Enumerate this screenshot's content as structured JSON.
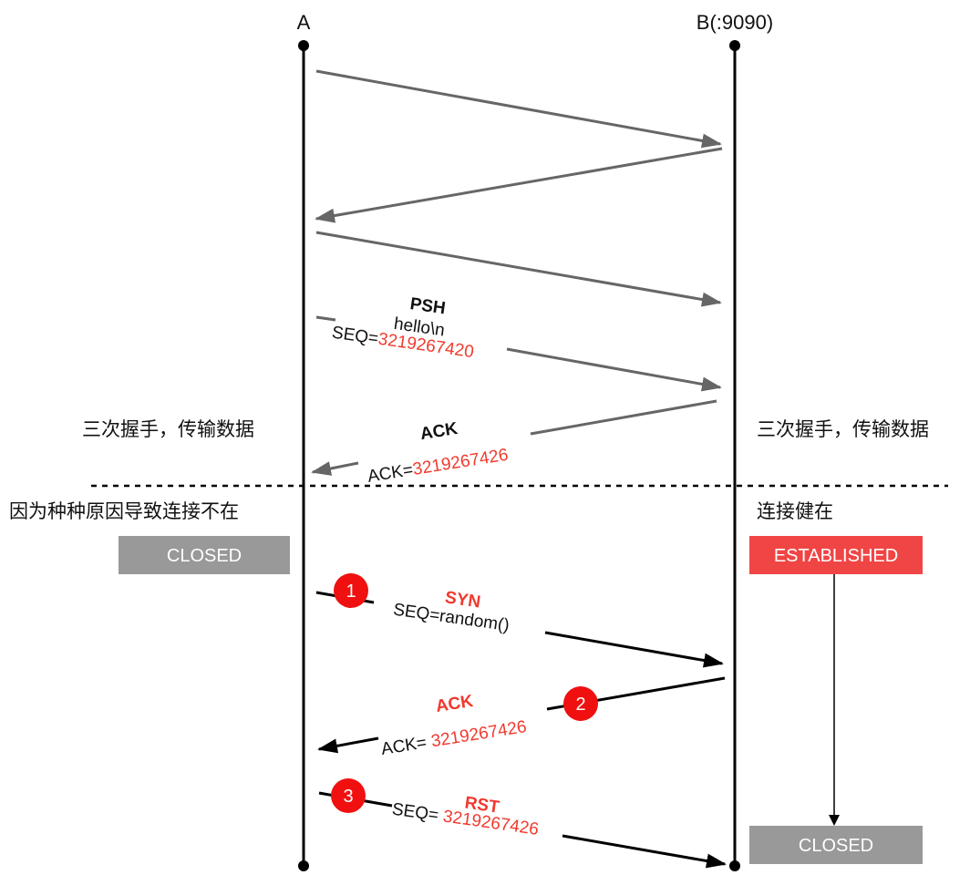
{
  "hosts": {
    "a": "A",
    "b": "B(:9090)"
  },
  "left_notes": {
    "phase1": "三次握手，传输数据",
    "phase2": "因为种种原因导致连接不在"
  },
  "right_notes": {
    "phase1": "三次握手，传输数据",
    "phase2": "连接健在"
  },
  "states": {
    "a_state": "CLOSED",
    "b_state_before": "ESTABLISHED",
    "b_state_after": "CLOSED"
  },
  "messages": {
    "psh": {
      "flag": "PSH",
      "payload": "hello\\n",
      "seq_label": "SEQ=",
      "seq": "3219267420"
    },
    "ack": {
      "flag": "ACK",
      "ack_label": "ACK=",
      "ack": "3219267426"
    },
    "syn": {
      "step": "1",
      "flag": "SYN",
      "seq_label": "SEQ=random()"
    },
    "ack2": {
      "step": "2",
      "flag": "ACK",
      "ack_label": "ACK= ",
      "ack": "3219267426"
    },
    "rst": {
      "step": "3",
      "flag": "RST",
      "seq_label": "SEQ= ",
      "seq": "3219267426"
    }
  },
  "colors": {
    "accent_red": "#f03a2e",
    "gray_state": "#999999",
    "established": "#f04545"
  }
}
